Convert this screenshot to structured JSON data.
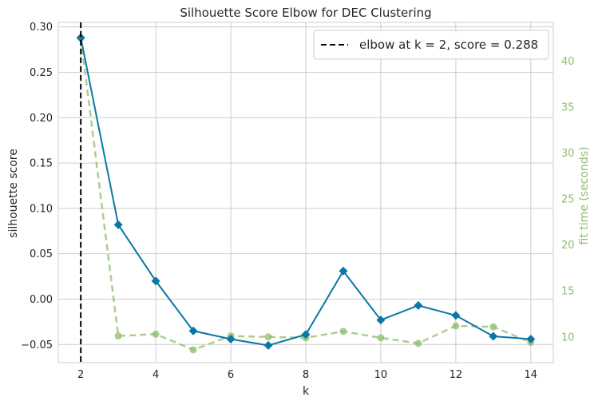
{
  "chart_data": {
    "type": "line",
    "title": "Silhouette Score Elbow for DEC Clustering",
    "xlabel": "k",
    "ylabel": "silhouette score",
    "y2label": "fit time (seconds)",
    "xlim": [
      1.4,
      14.6
    ],
    "ylim": [
      -0.07,
      0.305
    ],
    "y2lim": [
      7.2,
      44.2
    ],
    "x_ticks": [
      "2",
      "4",
      "6",
      "8",
      "10",
      "12",
      "14"
    ],
    "y_ticks": [
      "−0.05",
      "0.00",
      "0.05",
      "0.10",
      "0.15",
      "0.20",
      "0.25",
      "0.30"
    ],
    "y2_ticks": [
      "10",
      "15",
      "20",
      "25",
      "30",
      "35",
      "40"
    ],
    "grid": true,
    "legend_position": "top-right",
    "legend_label": "elbow at k = 2, score = 0.288",
    "elbow": {
      "k": 2,
      "score": 0.288
    },
    "colors": {
      "score": "#0a77a6",
      "time": "#8fbd6b",
      "elbow": "#000000",
      "grid": "#cccccc"
    },
    "series": [
      {
        "name": "silhouette score",
        "axis": "left",
        "x": [
          2,
          3,
          4,
          5,
          6,
          7,
          8,
          9,
          10,
          11,
          12,
          13,
          14
        ],
        "values": [
          0.288,
          0.082,
          0.02,
          -0.035,
          -0.044,
          -0.051,
          -0.039,
          0.031,
          -0.023,
          -0.007,
          -0.018,
          -0.041,
          -0.044
        ]
      },
      {
        "name": "fit time",
        "axis": "right",
        "x": [
          2,
          3,
          4,
          5,
          6,
          7,
          8,
          9,
          10,
          11,
          12,
          13,
          14
        ],
        "values": [
          42.5,
          10.1,
          10.3,
          8.6,
          10.1,
          10.0,
          9.9,
          10.6,
          9.9,
          9.3,
          11.2,
          11.1,
          9.4
        ]
      }
    ]
  }
}
